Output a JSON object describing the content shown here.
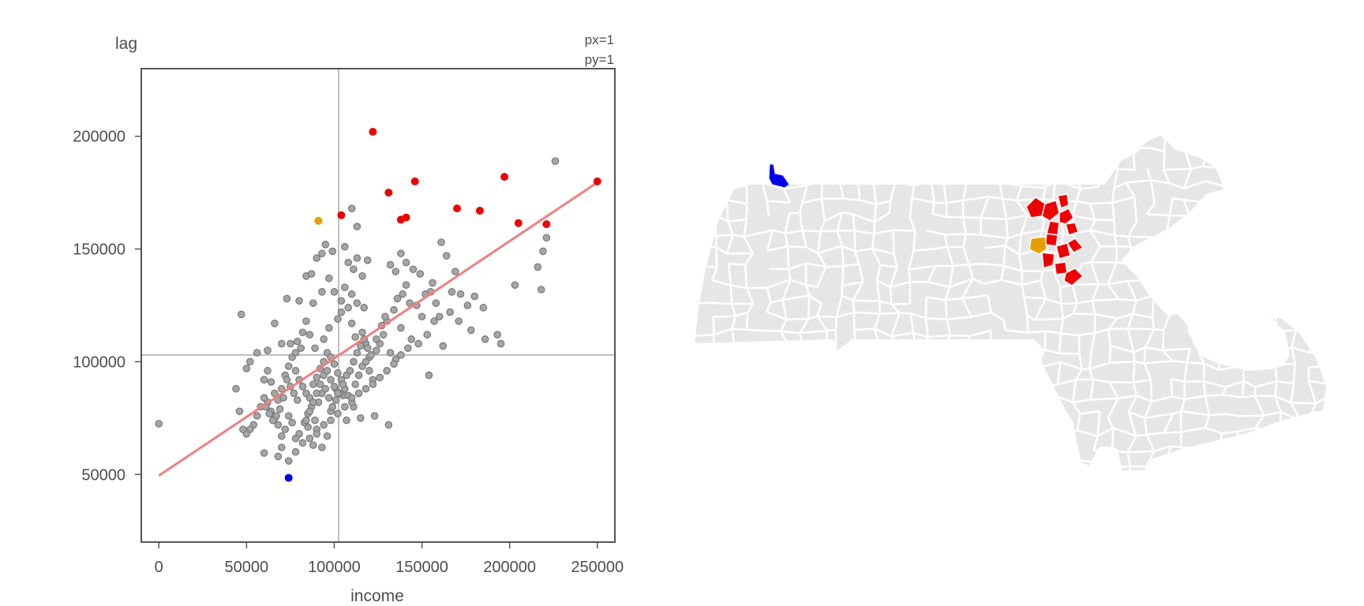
{
  "chart_data": [
    {
      "type": "scatter",
      "title": "",
      "xlabel": "income",
      "ylabel": "lag",
      "xlim": [
        -10000,
        260000
      ],
      "ylim": [
        20000,
        230000
      ],
      "xticks": [
        0,
        50000,
        100000,
        150000,
        200000,
        250000
      ],
      "yticks": [
        50000,
        100000,
        150000,
        200000
      ],
      "xtick_labels": [
        "0",
        "50000",
        "100000",
        "150000",
        "200000",
        "250000"
      ],
      "ytick_labels": [
        "50000",
        "100000",
        "150000",
        "200000"
      ],
      "annotations": {
        "px": "px=1",
        "py": "py=1"
      },
      "mean_lines": {
        "x": 102500,
        "y": 103000
      },
      "regression_line": {
        "x": [
          0,
          250000
        ],
        "y": [
          49500,
          179500
        ],
        "color": "#f08080"
      },
      "grid": false,
      "legend": "none",
      "colors": {
        "base": "#a6a6a6",
        "base_edge": "#777777",
        "high": "#ee0000",
        "low": "#0000ee",
        "selected": "#e69f00"
      },
      "highlighted": {
        "high_high": [
          [
            122000,
            202000
          ],
          [
            131000,
            175000
          ],
          [
            146000,
            180000
          ],
          [
            104000,
            165000
          ],
          [
            138000,
            163000
          ],
          [
            141000,
            164000
          ],
          [
            170000,
            168000
          ],
          [
            183000,
            167000
          ],
          [
            197000,
            182000
          ],
          [
            205000,
            161500
          ],
          [
            221000,
            161000
          ],
          [
            250000,
            180000
          ]
        ],
        "low_low": [
          [
            74000,
            48500
          ]
        ],
        "selected": [
          [
            91000,
            162500
          ]
        ]
      },
      "points": [
        [
          0,
          72500
        ],
        [
          47000,
          121000
        ],
        [
          62000,
          105000
        ],
        [
          66000,
          117000
        ],
        [
          70000,
          108000
        ],
        [
          73000,
          128000
        ],
        [
          80000,
          127000
        ],
        [
          84000,
          138000
        ],
        [
          87000,
          139000
        ],
        [
          90000,
          146000
        ],
        [
          93000,
          148000
        ],
        [
          95000,
          152000
        ],
        [
          99000,
          149000
        ],
        [
          100000,
          131000
        ],
        [
          86000,
          112000
        ],
        [
          82000,
          113000
        ],
        [
          79000,
          109000
        ],
        [
          89000,
          106000
        ],
        [
          94000,
          110000
        ],
        [
          97000,
          115000
        ],
        [
          102000,
          119000
        ],
        [
          104000,
          122000
        ],
        [
          108000,
          124000
        ],
        [
          110000,
          117000
        ],
        [
          112000,
          111000
        ],
        [
          116000,
          113000
        ],
        [
          118000,
          108000
        ],
        [
          120000,
          102000
        ],
        [
          124000,
          105000
        ],
        [
          126000,
          108000
        ],
        [
          128000,
          112000
        ],
        [
          130000,
          118000
        ],
        [
          134000,
          123000
        ],
        [
          136000,
          128000
        ],
        [
          139000,
          130000
        ],
        [
          141000,
          134000
        ],
        [
          143000,
          126000
        ],
        [
          147000,
          125000
        ],
        [
          150000,
          120000
        ],
        [
          152000,
          130000
        ],
        [
          156000,
          135000
        ],
        [
          161000,
          153000
        ],
        [
          164000,
          147000
        ],
        [
          169000,
          140000
        ],
        [
          172000,
          130000
        ],
        [
          176000,
          125000
        ],
        [
          180000,
          129000
        ],
        [
          185000,
          124000
        ],
        [
          193000,
          112000
        ],
        [
          203000,
          134000
        ],
        [
          216000,
          142000
        ],
        [
          218000,
          132000
        ],
        [
          219000,
          149000
        ],
        [
          221000,
          155000
        ],
        [
          226000,
          189000
        ],
        [
          154000,
          94000
        ],
        [
          131000,
          72000
        ],
        [
          123000,
          76000
        ],
        [
          115000,
          75000
        ],
        [
          111000,
          80000
        ],
        [
          107000,
          74000
        ],
        [
          105000,
          85000
        ],
        [
          101000,
          88000
        ],
        [
          98000,
          78000
        ],
        [
          96000,
          67000
        ],
        [
          93000,
          62000
        ],
        [
          90000,
          70000
        ],
        [
          88000,
          63000
        ],
        [
          85000,
          71000
        ],
        [
          83000,
          73000
        ],
        [
          80000,
          68000
        ],
        [
          78000,
          66000
        ],
        [
          76000,
          73000
        ],
        [
          74000,
          76000
        ],
        [
          72000,
          70000
        ],
        [
          70000,
          67000
        ],
        [
          68000,
          72000
        ],
        [
          66000,
          75000
        ],
        [
          64000,
          78000
        ],
        [
          62000,
          82000
        ],
        [
          60000,
          84000
        ],
        [
          58000,
          80000
        ],
        [
          56000,
          76000
        ],
        [
          54000,
          72000
        ],
        [
          52000,
          70000
        ],
        [
          50000,
          68000
        ],
        [
          48000,
          70000
        ],
        [
          46000,
          78000
        ],
        [
          44000,
          88000
        ],
        [
          50000,
          97000
        ],
        [
          52000,
          100000
        ],
        [
          56000,
          104000
        ],
        [
          60000,
          92000
        ],
        [
          62000,
          96000
        ],
        [
          64000,
          91000
        ],
        [
          66000,
          86000
        ],
        [
          68000,
          83000
        ],
        [
          70000,
          88000
        ],
        [
          72000,
          94000
        ],
        [
          74000,
          98000
        ],
        [
          76000,
          102000
        ],
        [
          78000,
          96000
        ],
        [
          80000,
          92000
        ],
        [
          82000,
          89000
        ],
        [
          84000,
          86000
        ],
        [
          86000,
          84000
        ],
        [
          88000,
          90000
        ],
        [
          90000,
          93000
        ],
        [
          92000,
          97000
        ],
        [
          94000,
          100000
        ],
        [
          96000,
          104000
        ],
        [
          98000,
          102000
        ],
        [
          100000,
          99000
        ],
        [
          102000,
          95000
        ],
        [
          104000,
          92000
        ],
        [
          106000,
          88000
        ],
        [
          108000,
          85000
        ],
        [
          110000,
          82000
        ],
        [
          112000,
          90000
        ],
        [
          114000,
          94000
        ],
        [
          116000,
          98000
        ],
        [
          118000,
          100000
        ],
        [
          120000,
          96000
        ],
        [
          122000,
          92000
        ],
        [
          124000,
          110000
        ],
        [
          127000,
          116000
        ],
        [
          129000,
          120000
        ],
        [
          132000,
          104000
        ],
        [
          135000,
          101000
        ],
        [
          138000,
          115000
        ],
        [
          144000,
          110000
        ],
        [
          148000,
          108000
        ],
        [
          153000,
          112000
        ],
        [
          157000,
          118000
        ],
        [
          162000,
          107000
        ],
        [
          166000,
          122000
        ],
        [
          171000,
          118000
        ],
        [
          178000,
          114000
        ],
        [
          186000,
          110000
        ],
        [
          195000,
          108000
        ],
        [
          70000,
          62000
        ],
        [
          68000,
          58000
        ],
        [
          74000,
          56000
        ],
        [
          78000,
          60000
        ],
        [
          82000,
          64000
        ],
        [
          86000,
          66000
        ],
        [
          90000,
          68000
        ],
        [
          94000,
          72000
        ],
        [
          98000,
          74000
        ],
        [
          102000,
          77000
        ],
        [
          106000,
          80000
        ],
        [
          110000,
          84000
        ],
        [
          114000,
          86000
        ],
        [
          118000,
          88000
        ],
        [
          122000,
          90000
        ],
        [
          126000,
          93000
        ],
        [
          130000,
          96000
        ],
        [
          134000,
          99000
        ],
        [
          138000,
          103000
        ],
        [
          142000,
          106000
        ],
        [
          60000,
          59500
        ],
        [
          85000,
          77000
        ],
        [
          87000,
          80000
        ],
        [
          89000,
          74000
        ],
        [
          91000,
          82000
        ],
        [
          93000,
          86000
        ],
        [
          95000,
          88000
        ],
        [
          97000,
          84000
        ],
        [
          99000,
          80000
        ],
        [
          101000,
          83000
        ],
        [
          103000,
          86000
        ],
        [
          105000,
          90000
        ],
        [
          107000,
          94000
        ],
        [
          109000,
          96000
        ],
        [
          111000,
          100000
        ],
        [
          113000,
          104000
        ],
        [
          115000,
          107000
        ],
        [
          117000,
          110000
        ],
        [
          119000,
          106000
        ],
        [
          121000,
          103000
        ],
        [
          79000,
          83000
        ],
        [
          77000,
          86000
        ],
        [
          75000,
          89000
        ],
        [
          73000,
          92000
        ],
        [
          71000,
          84000
        ],
        [
          69000,
          79000
        ],
        [
          67000,
          76000
        ],
        [
          65000,
          74000
        ],
        [
          63000,
          77000
        ],
        [
          61000,
          80000
        ],
        [
          84000,
          74000
        ],
        [
          86000,
          78000
        ],
        [
          88000,
          82000
        ],
        [
          90000,
          86000
        ],
        [
          92000,
          90000
        ],
        [
          94000,
          94000
        ],
        [
          96000,
          96000
        ],
        [
          98000,
          92000
        ],
        [
          100000,
          89000
        ],
        [
          102000,
          86000
        ],
        [
          132000,
          143000
        ],
        [
          135000,
          140000
        ],
        [
          138000,
          148000
        ],
        [
          141000,
          144000
        ],
        [
          145000,
          141000
        ],
        [
          149000,
          139000
        ],
        [
          155000,
          131000
        ],
        [
          158000,
          126000
        ],
        [
          160000,
          120000
        ],
        [
          167000,
          131000
        ],
        [
          108000,
          144000
        ],
        [
          111000,
          141000
        ],
        [
          113000,
          146000
        ],
        [
          116000,
          138000
        ],
        [
          119000,
          145000
        ],
        [
          106000,
          133000
        ],
        [
          104000,
          127000
        ],
        [
          110000,
          130000
        ],
        [
          113000,
          126000
        ],
        [
          117000,
          124000
        ],
        [
          110000,
          168000
        ],
        [
          113000,
          160000
        ],
        [
          106000,
          151000
        ],
        [
          97000,
          137000
        ],
        [
          93000,
          131000
        ],
        [
          88000,
          126000
        ],
        [
          84000,
          118000
        ],
        [
          81000,
          106000
        ],
        [
          78000,
          104000
        ],
        [
          75000,
          108000
        ]
      ]
    },
    {
      "type": "choropleth",
      "title": "",
      "legend": "none",
      "colors": {
        "base": "#e6e6e6",
        "border": "#ffffff",
        "high": "#ee0000",
        "low": "#0000ee",
        "selected": "#e69f00"
      }
    }
  ]
}
